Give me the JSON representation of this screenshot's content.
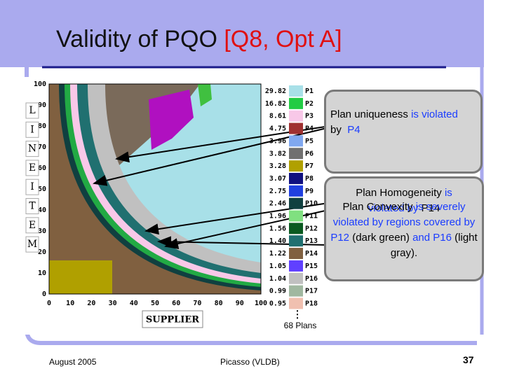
{
  "header": {
    "title": "Validity of PQO",
    "title_highlight": "[Q8, Opt A]"
  },
  "plot": {
    "y_axis_letters": [
      "L",
      "I",
      "N",
      "E",
      "I",
      "T",
      "E",
      "M"
    ],
    "y_ticks": [
      "0",
      "10",
      "20",
      "30",
      "40",
      "50",
      "60",
      "70",
      "80",
      "90",
      "100"
    ],
    "x_ticks": [
      "0",
      "10",
      "20",
      "30",
      "40",
      "50",
      "60",
      "70",
      "80",
      "90",
      "100"
    ],
    "x_axis_label": "SUPPLIER",
    "legend": [
      {
        "value": "29.82",
        "label": "P1",
        "color": "#a8e0e8"
      },
      {
        "value": "16.82",
        "label": "P2",
        "color": "#22cc44"
      },
      {
        "value": "8.61",
        "label": "P3",
        "color": "#f8c8e8"
      },
      {
        "value": "4.75",
        "label": "P4",
        "color": "#a03030"
      },
      {
        "value": "3.96",
        "label": "P5",
        "color": "#80a8f0"
      },
      {
        "value": "3.82",
        "label": "P6",
        "color": "#707070"
      },
      {
        "value": "3.28",
        "label": "P7",
        "color": "#b0a000"
      },
      {
        "value": "3.07",
        "label": "P8",
        "color": "#101080"
      },
      {
        "value": "2.75",
        "label": "P9",
        "color": "#2040e0"
      },
      {
        "value": "2.46",
        "label": "P10",
        "color": "#104040"
      },
      {
        "value": "1.96",
        "label": "P11",
        "color": "#80e080"
      },
      {
        "value": "1.56",
        "label": "P12",
        "color": "#0a5a20"
      },
      {
        "value": "1.40",
        "label": "P13",
        "color": "#207070"
      },
      {
        "value": "1.22",
        "label": "P14",
        "color": "#806040"
      },
      {
        "value": "1.05",
        "label": "P15",
        "color": "#6040ff"
      },
      {
        "value": "1.04",
        "label": "P16",
        "color": "#c0c0c0"
      },
      {
        "value": "0.99",
        "label": "P17",
        "color": "#a0b8a0"
      },
      {
        "value": "0.95",
        "label": "P18",
        "color": "#f0c0b0"
      }
    ],
    "plan_count": "68 Plans"
  },
  "callouts": [
    {
      "segments": [
        "Plan uniqueness",
        "is violated",
        "by",
        "P4"
      ]
    },
    {
      "segments": [
        "Plan Homogeneity",
        "is violated by",
        "P14"
      ]
    },
    {
      "segments": [
        "Plan Convexity",
        "is",
        "severely violated by regions covered by",
        "P12",
        "(dark green)",
        "and",
        "P16",
        "(light gray)."
      ]
    }
  ],
  "footer": {
    "date": "August 2005",
    "venue": "Picasso (VLDB)",
    "page": "37"
  }
}
